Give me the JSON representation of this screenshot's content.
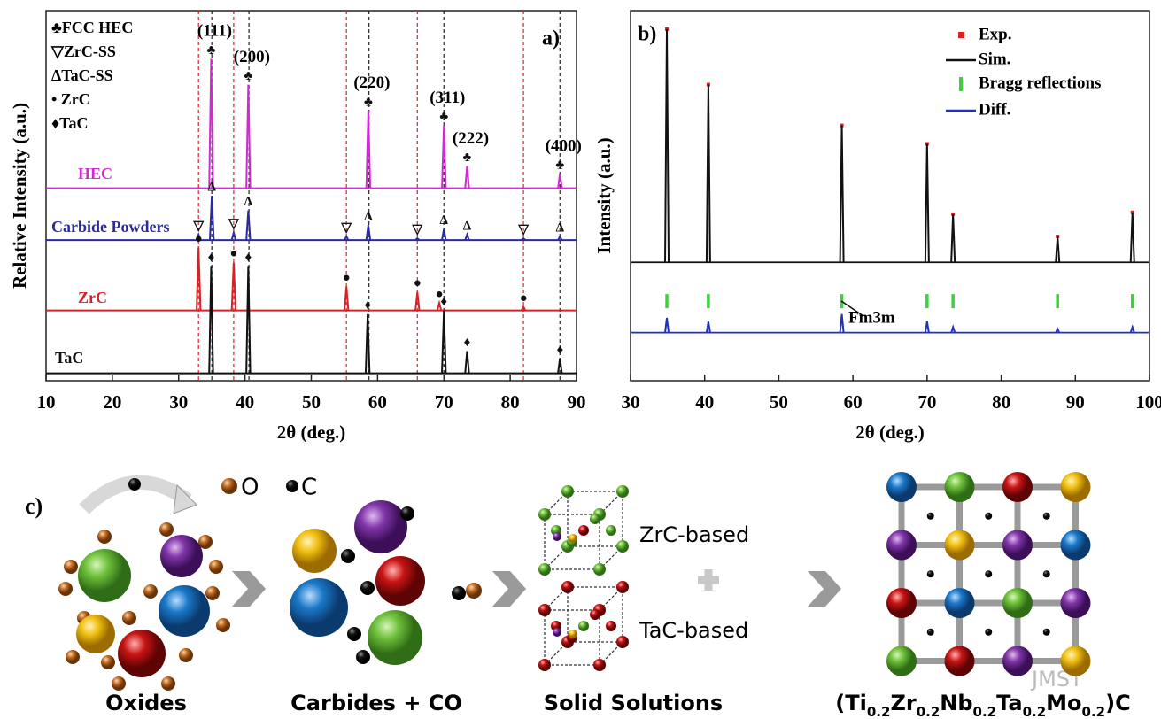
{
  "chart_data": [
    {
      "type": "xrd-stack",
      "panel_label": "a)",
      "xlabel": "2θ (deg.)",
      "ylabel": "Relative Intensity (a.u.)",
      "xlim": [
        10,
        90
      ],
      "xticks": [
        10,
        20,
        30,
        40,
        50,
        60,
        70,
        80,
        90
      ],
      "ylim": [
        0,
        100
      ],
      "legend_text": [
        "♣FCC HEC",
        "▽ZrC-SS",
        "ΔTaC-SS",
        "• ZrC",
        "♦TaC"
      ],
      "ref_lines": [
        {
          "color": "#e0303a",
          "x": [
            33.0,
            38.3,
            55.3,
            66.0,
            82.0
          ]
        },
        {
          "color": "#333333",
          "x": [
            35.0,
            40.6,
            58.7,
            70.0,
            87.5
          ]
        }
      ],
      "series": [
        {
          "name": "HEC",
          "color": "#d22ad2",
          "baseline": 52,
          "x": [
            34.9,
            40.5,
            58.6,
            70.0,
            73.5,
            87.5
          ],
          "values": [
            35,
            28,
            21,
            17,
            6,
            4
          ],
          "symbols": [
            "♣",
            "♣",
            "♣",
            "♣",
            "♣",
            "♣"
          ],
          "peak_labels": [
            "(111)",
            "(200)",
            "(220)",
            "(311)",
            "(222)",
            "(400)"
          ]
        },
        {
          "name": "Carbide Powders",
          "color": "#2a2aa0",
          "baseline": 38,
          "x": [
            33.0,
            35.0,
            38.3,
            40.5,
            55.3,
            58.6,
            66.0,
            70.0,
            73.5,
            82.0,
            87.5
          ],
          "values": [
            1.5,
            12,
            2,
            8,
            1,
            4,
            0.5,
            3,
            1.5,
            0.5,
            1
          ],
          "symbols": [
            "▽",
            "Δ",
            "▽",
            "Δ",
            "▽",
            "Δ",
            "▽",
            "Δ",
            "Δ",
            "▽",
            "Δ"
          ]
        },
        {
          "name": "ZrC",
          "color": "#d8202a",
          "baseline": 19,
          "x": [
            33.0,
            38.3,
            55.3,
            66.0,
            69.3,
            82.0
          ],
          "values": [
            17,
            13,
            6.5,
            5,
            2,
            1
          ],
          "symbols": [
            "●",
            "●",
            "●",
            "●",
            "●",
            "●"
          ]
        },
        {
          "name": "TaC",
          "color": "#111111",
          "baseline": 2,
          "x": [
            34.9,
            40.5,
            58.5,
            70.0,
            73.5,
            87.5
          ],
          "values": [
            29,
            29,
            16,
            17,
            6,
            4
          ],
          "symbols": [
            "♦",
            "♦",
            "♦",
            "♦",
            "♦",
            "♦"
          ]
        }
      ]
    },
    {
      "type": "rietveld",
      "panel_label": "b)",
      "xlabel": "2θ (deg.)",
      "ylabel": "Intensity (a.u.)",
      "xlim": [
        30,
        100
      ],
      "xticks": [
        30,
        40,
        50,
        60,
        70,
        80,
        90,
        100
      ],
      "ylim": [
        0,
        100
      ],
      "annotation": "Fm3m",
      "series": [
        {
          "name": "Exp.",
          "color": "#e02020",
          "kind": "points",
          "baseline": 32,
          "x": [
            34.9,
            40.5,
            58.5,
            70.0,
            73.5,
            87.6,
            97.7
          ],
          "values": [
            63,
            48,
            37,
            32,
            13,
            7,
            13.5
          ]
        },
        {
          "name": "Sim.",
          "color": "#111111",
          "kind": "peaks",
          "baseline": 32,
          "x": [
            34.9,
            40.5,
            58.5,
            70.0,
            73.5,
            87.6,
            97.7
          ],
          "values": [
            63,
            48,
            37,
            32,
            13,
            7,
            13.5
          ]
        },
        {
          "name": "Bragg reflections",
          "color": "#3dd13d",
          "kind": "ticks",
          "level": 21.5,
          "x": [
            34.9,
            40.5,
            58.5,
            70.0,
            73.5,
            87.6,
            97.7
          ]
        },
        {
          "name": "Diff.",
          "color": "#2030c0",
          "kind": "peaks",
          "baseline": 13,
          "x": [
            34.9,
            40.5,
            58.5,
            70.0,
            73.5,
            87.6,
            97.7
          ],
          "values": [
            4,
            3,
            5,
            3,
            1.5,
            1,
            1.5
          ]
        }
      ]
    }
  ],
  "diagram": {
    "panel_label": "c)",
    "legend_o": "O",
    "legend_c": "C",
    "labels": [
      "Oxides",
      "Carbides + CO",
      "Solid Solutions"
    ],
    "zrc": "ZrC-based",
    "tac": "TaC-based",
    "formula_parts": [
      "(Ti",
      "Zr",
      "Nb",
      "Ta",
      "Mo",
      ")C"
    ],
    "formula_subs": [
      "0.2",
      "0.2",
      "0.2",
      "0.2",
      "0.2"
    ],
    "watermark": "JMST"
  }
}
